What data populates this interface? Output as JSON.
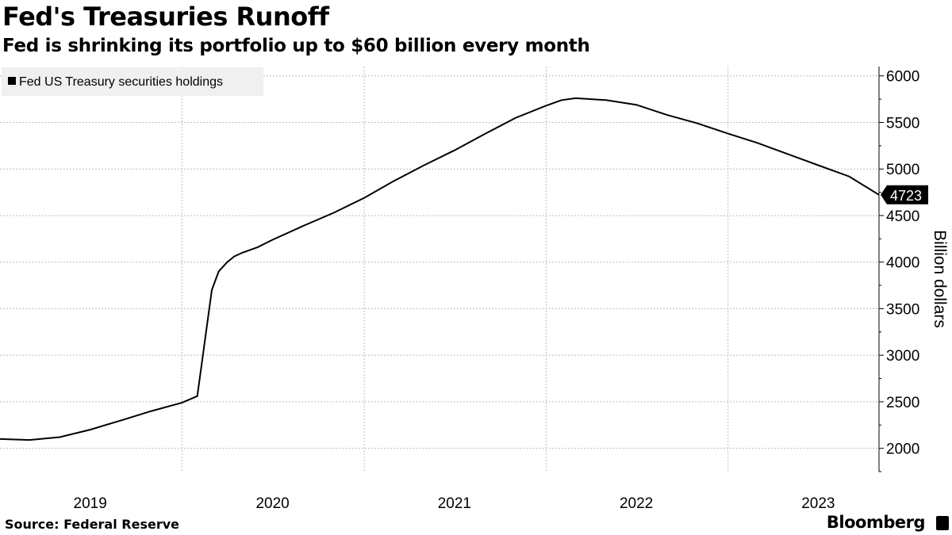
{
  "header": {
    "title": "Fed's Treasuries Runoff",
    "subtitle": "Fed is shrinking its portfolio up to $60 billion every month"
  },
  "footer": {
    "source": "Source: Federal Reserve",
    "brand": "Bloomberg"
  },
  "chart_data": {
    "type": "line",
    "ylabel": "Billion dollars",
    "ylim": [
      1750,
      6100
    ],
    "yticks": [
      2000,
      2500,
      3000,
      3500,
      4000,
      4500,
      5000,
      5500,
      6000
    ],
    "x_tick_labels": [
      "2019",
      "2020",
      "2021",
      "2022",
      "2023"
    ],
    "x_range": [
      "2019-01-01",
      "2023-10-31"
    ],
    "grid": true,
    "legend_position": "top-left",
    "last_value_label": "4723",
    "colors": {
      "line": "#000000",
      "grid": "#bdbdbd",
      "legend_bg": "#f0f0f0",
      "label_bg": "#000000"
    },
    "series": [
      {
        "name": "Fed US Treasury securities holdings",
        "x": [
          "2019-01-01",
          "2019-03-01",
          "2019-05-01",
          "2019-07-01",
          "2019-09-01",
          "2019-11-01",
          "2020-01-01",
          "2020-02-01",
          "2020-03-01",
          "2020-03-15",
          "2020-04-01",
          "2020-04-15",
          "2020-05-01",
          "2020-06-01",
          "2020-07-01",
          "2020-09-01",
          "2020-11-01",
          "2021-01-01",
          "2021-03-01",
          "2021-05-01",
          "2021-07-01",
          "2021-09-01",
          "2021-11-01",
          "2022-01-01",
          "2022-02-01",
          "2022-03-01",
          "2022-05-01",
          "2022-07-01",
          "2022-09-01",
          "2022-11-01",
          "2023-01-01",
          "2023-03-01",
          "2023-05-01",
          "2023-07-01",
          "2023-09-01",
          "2023-10-31"
        ],
        "values": [
          2100,
          2090,
          2120,
          2200,
          2300,
          2400,
          2490,
          2560,
          3700,
          3900,
          4000,
          4060,
          4100,
          4160,
          4240,
          4390,
          4530,
          4690,
          4870,
          5040,
          5200,
          5380,
          5550,
          5680,
          5740,
          5760,
          5740,
          5690,
          5580,
          5490,
          5380,
          5280,
          5160,
          5040,
          4920,
          4723
        ]
      }
    ]
  }
}
